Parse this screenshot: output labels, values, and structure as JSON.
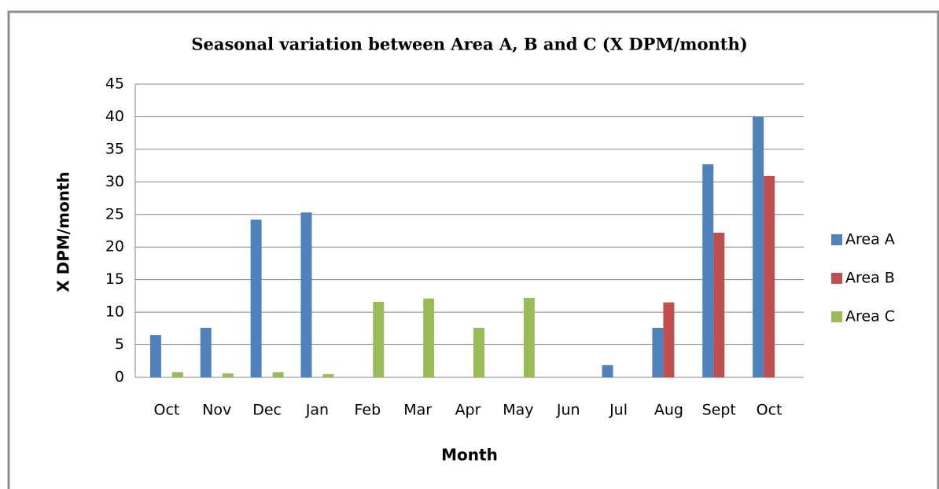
{
  "chart_data": {
    "type": "bar",
    "title": "Seasonal variation between Area A, B and C (X DPM/month)",
    "x_label": "Month",
    "y_label": "X DPM/month",
    "categories": [
      "Oct",
      "Nov",
      "Dec",
      "Jan",
      "Feb",
      "Mar",
      "Apr",
      "May",
      "Jun",
      "Jul",
      "Aug",
      "Sept",
      "Oct"
    ],
    "series": [
      {
        "name": "Area A",
        "color": "#4f81bd",
        "values": [
          6.5,
          7.6,
          24.2,
          25.3,
          0,
          0,
          0,
          0,
          0,
          1.9,
          7.6,
          32.7,
          40
        ]
      },
      {
        "name": "Area B",
        "color": "#c0504d",
        "values": [
          0,
          0,
          0,
          0,
          0,
          0,
          0,
          0,
          0,
          0,
          11.5,
          22.2,
          30.9
        ]
      },
      {
        "name": "Area C",
        "color": "#9bbb59",
        "values": [
          0.8,
          0.6,
          0.8,
          0.5,
          11.6,
          12.1,
          7.6,
          12.2,
          0,
          0,
          0,
          0,
          0
        ]
      }
    ],
    "ylim": [
      0,
      45
    ],
    "yticks": [
      0,
      5,
      10,
      15,
      20,
      25,
      30,
      35,
      40,
      45
    ],
    "grid": true,
    "legend": "right"
  }
}
